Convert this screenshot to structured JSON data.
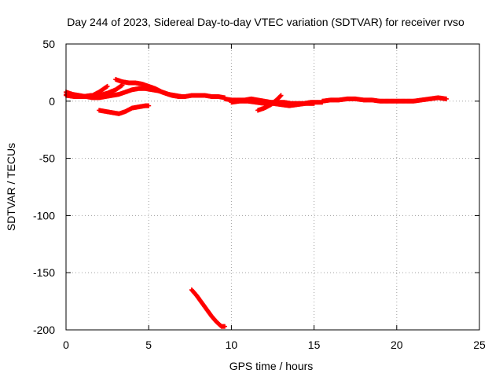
{
  "chart_data": {
    "type": "scatter",
    "title": "Day 244 of 2023, Sidereal Day-to-day VTEC variation (SDTVAR) for receiver rvso",
    "xlabel": "GPS time / hours",
    "ylabel": "SDTVAR / TECUs",
    "xlim": [
      0,
      25
    ],
    "ylim": [
      -200,
      50
    ],
    "xticks": [
      "0",
      "5",
      "10",
      "15",
      "20",
      "25"
    ],
    "yticks": [
      "50",
      "0",
      "-50",
      "-100",
      "-150",
      "-200"
    ],
    "grid": true,
    "series": [
      {
        "name": "SDTVAR",
        "color": "#ff0000",
        "segments": [
          [
            [
              0.0,
              8
            ],
            [
              0.4,
              6
            ],
            [
              0.8,
              5
            ],
            [
              1.2,
              4
            ],
            [
              1.6,
              3
            ],
            [
              2.0,
              3
            ],
            [
              2.4,
              4
            ],
            [
              2.8,
              5
            ],
            [
              3.2,
              6
            ],
            [
              3.6,
              8
            ],
            [
              4.0,
              10
            ],
            [
              4.4,
              11
            ],
            [
              4.8,
              11
            ],
            [
              5.2,
              10
            ],
            [
              5.6,
              9
            ],
            [
              6.0,
              7
            ],
            [
              6.4,
              5
            ],
            [
              6.8,
              4
            ],
            [
              7.2,
              4
            ],
            [
              7.6,
              5
            ],
            [
              8.0,
              5
            ],
            [
              8.4,
              5
            ],
            [
              8.8,
              4
            ],
            [
              9.2,
              4
            ],
            [
              9.6,
              3
            ]
          ],
          [
            [
              0.0,
              6
            ],
            [
              0.4,
              5
            ],
            [
              0.8,
              4
            ],
            [
              1.2,
              4
            ],
            [
              1.6,
              5
            ],
            [
              2.0,
              8
            ],
            [
              2.3,
              11
            ],
            [
              2.5,
              13
            ]
          ],
          [
            [
              3.0,
              19
            ],
            [
              3.4,
              17
            ],
            [
              3.8,
              16
            ],
            [
              4.2,
              16
            ],
            [
              4.6,
              15
            ],
            [
              5.0,
              13
            ],
            [
              5.4,
              11
            ],
            [
              5.8,
              8
            ],
            [
              6.2,
              6
            ],
            [
              6.6,
              5
            ],
            [
              7.0,
              4
            ]
          ],
          [
            [
              0.0,
              5
            ],
            [
              0.5,
              4
            ],
            [
              1.0,
              4
            ],
            [
              1.5,
              5
            ],
            [
              2.0,
              5
            ],
            [
              2.5,
              7
            ],
            [
              3.0,
              10
            ],
            [
              3.4,
              14
            ]
          ],
          [
            [
              2.0,
              -8
            ],
            [
              2.4,
              -9
            ],
            [
              2.8,
              -10
            ],
            [
              3.2,
              -11
            ],
            [
              3.6,
              -9
            ],
            [
              4.0,
              -6
            ],
            [
              4.4,
              -5
            ],
            [
              4.8,
              -4
            ],
            [
              5.0,
              -4
            ]
          ],
          [
            [
              9.6,
              2
            ],
            [
              10.0,
              1
            ],
            [
              10.4,
              1
            ],
            [
              10.8,
              1
            ],
            [
              11.2,
              2
            ],
            [
              11.6,
              1
            ],
            [
              12.0,
              0
            ],
            [
              12.4,
              -1
            ],
            [
              12.8,
              -1
            ],
            [
              13.2,
              -1
            ],
            [
              13.6,
              -2
            ],
            [
              14.0,
              -2
            ],
            [
              14.4,
              -2
            ],
            [
              14.8,
              -1
            ],
            [
              15.2,
              -1
            ],
            [
              15.5,
              -1
            ]
          ],
          [
            [
              11.6,
              -8
            ],
            [
              12.0,
              -6
            ],
            [
              12.4,
              -3
            ],
            [
              12.8,
              2
            ],
            [
              13.0,
              5
            ]
          ],
          [
            [
              10.0,
              -1
            ],
            [
              10.5,
              0
            ],
            [
              11.0,
              0
            ],
            [
              11.5,
              -1
            ],
            [
              12.0,
              -2
            ],
            [
              12.5,
              -2
            ],
            [
              13.0,
              -3
            ],
            [
              13.5,
              -4
            ],
            [
              14.0,
              -3
            ],
            [
              14.5,
              -2
            ],
            [
              15.0,
              -2
            ]
          ],
          [
            [
              15.5,
              0
            ],
            [
              16.0,
              1
            ],
            [
              16.5,
              1
            ],
            [
              17.0,
              2
            ],
            [
              17.5,
              2
            ],
            [
              18.0,
              1
            ],
            [
              18.5,
              1
            ],
            [
              19.0,
              0
            ],
            [
              19.5,
              0
            ],
            [
              20.0,
              0
            ],
            [
              20.5,
              0
            ],
            [
              21.0,
              0
            ],
            [
              21.5,
              1
            ],
            [
              22.0,
              2
            ],
            [
              22.5,
              3
            ],
            [
              23.0,
              2
            ]
          ],
          [
            [
              7.6,
              -165
            ],
            [
              7.9,
              -170
            ],
            [
              8.2,
              -176
            ],
            [
              8.5,
              -182
            ],
            [
              8.8,
              -188
            ],
            [
              9.1,
              -193
            ],
            [
              9.4,
              -197
            ],
            [
              9.6,
              -197
            ]
          ]
        ]
      }
    ]
  }
}
